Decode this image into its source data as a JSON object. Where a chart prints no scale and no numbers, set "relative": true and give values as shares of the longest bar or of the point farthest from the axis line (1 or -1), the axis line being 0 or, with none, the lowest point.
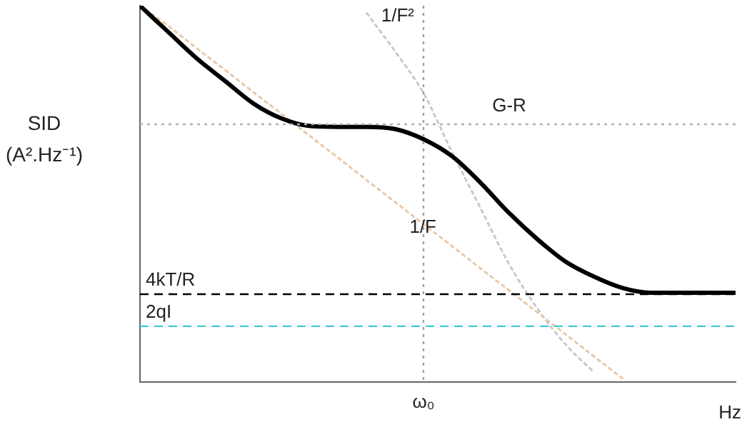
{
  "chart_data": {
    "type": "line",
    "relative": true,
    "xlabel": "Hz",
    "ylabel": "SID\n(A².Hz⁻¹)",
    "categories": [
      null,
      null,
      null,
      null,
      null,
      null,
      null,
      null,
      null,
      null,
      null,
      null,
      null,
      null,
      null,
      null,
      null,
      null,
      null,
      null,
      null,
      null
    ],
    "series": [
      {
        "color": "#000000",
        "line_style": "solid",
        "values": [
          1.0,
          0.93,
          0.86,
          0.8,
          0.74,
          0.7,
          0.68,
          0.678,
          0.678,
          0.672,
          0.645,
          0.6,
          0.53,
          0.45,
          0.38,
          0.32,
          0.28,
          0.25,
          0.237,
          0.237,
          0.237,
          0.237
        ]
      },
      {
        "name": "1/F",
        "color": "#e8c9a8",
        "line_style": "dotted",
        "values": [
          1.0,
          0.946,
          0.887,
          0.829,
          0.77,
          0.712,
          0.653,
          0.595,
          0.536,
          0.478,
          0.419,
          0.361,
          0.302,
          0.244,
          0.185,
          0.127,
          0.068,
          0.01,
          null,
          null,
          null,
          null
        ]
      },
      {
        "name": "1/F²",
        "color": "#c8c8c8",
        "line_style": "dotted",
        "values": [
          null,
          null,
          null,
          null,
          null,
          null,
          null,
          null,
          0.98,
          0.878,
          0.767,
          0.611,
          0.463,
          0.315,
          0.196,
          0.1,
          0.026,
          null,
          null,
          null,
          null,
          null
        ]
      }
    ],
    "ref_lines": [
      {
        "axis": "y",
        "value": 0.685,
        "label": "G-R",
        "color": "#b0b0b0",
        "line_style": "dotted"
      },
      {
        "axis": "y",
        "value": 0.233,
        "label": "4kT/R",
        "color": "#000000",
        "line_style": "dashed"
      },
      {
        "axis": "y",
        "value": 0.148,
        "label": "2qI",
        "color": "#40c8d8",
        "line_style": "dashed"
      }
    ],
    "annotations": [
      "ω₀"
    ],
    "grid": false,
    "legend": false,
    "marker": "none"
  }
}
